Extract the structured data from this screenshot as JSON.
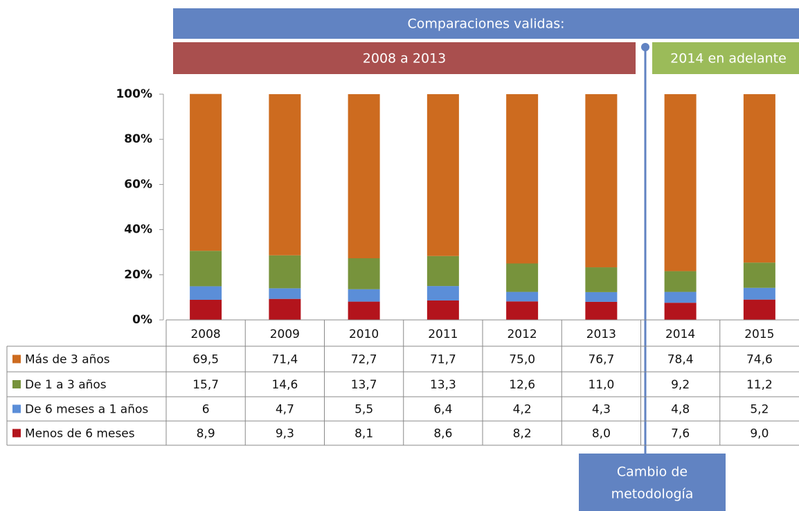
{
  "chart_data": {
    "type": "stacked-bar",
    "annotations": {
      "banner": "Comparaciones validas:",
      "period1": "2008 a 2013",
      "period2": "2014 en adelante",
      "note": [
        "Cambio de",
        "metodología"
      ]
    },
    "categories": [
      "2008",
      "2009",
      "2010",
      "2011",
      "2012",
      "2013",
      "2014",
      "2015"
    ],
    "series": [
      {
        "name": "Más de 3 años",
        "color": "#cd6b1f",
        "values": [
          69.5,
          71.4,
          72.7,
          71.7,
          75.0,
          76.7,
          78.4,
          74.6
        ],
        "value_labels": [
          "69,5",
          "71,4",
          "72,7",
          "71,7",
          "75,0",
          "76,7",
          "78,4",
          "74,6"
        ]
      },
      {
        "name": "De 1 a 3 años",
        "color": "#77933c",
        "values": [
          15.7,
          14.6,
          13.7,
          13.3,
          12.6,
          11.0,
          9.2,
          11.2
        ],
        "value_labels": [
          "15,7",
          "14,6",
          "13,7",
          "13,3",
          "12,6",
          "11,0",
          "9,2",
          "11,2"
        ]
      },
      {
        "name": "De 6 meses a 1 años",
        "color": "#5b8ed8",
        "values": [
          6,
          4.7,
          5.5,
          6.4,
          4.2,
          4.3,
          4.8,
          5.2
        ],
        "value_labels": [
          "6",
          "4,7",
          "5,5",
          "6,4",
          "4,2",
          "4,3",
          "4,8",
          "5,2"
        ]
      },
      {
        "name": "Menos de 6 meses",
        "color": "#b3141c",
        "values": [
          8.9,
          9.3,
          8.1,
          8.6,
          8.2,
          8.0,
          7.6,
          9.0
        ],
        "value_labels": [
          "8,9",
          "9,3",
          "8,1",
          "8,6",
          "8,2",
          "8,0",
          "7,6",
          "9,0"
        ]
      }
    ],
    "ylim": [
      0,
      100
    ],
    "yticks": [
      {
        "value": 0,
        "label": "0%"
      },
      {
        "value": 20,
        "label": "20%"
      },
      {
        "value": 40,
        "label": "40%"
      },
      {
        "value": 60,
        "label": "60%"
      },
      {
        "value": 80,
        "label": "80%"
      },
      {
        "value": 100,
        "label": "100%"
      }
    ],
    "grid": false
  }
}
